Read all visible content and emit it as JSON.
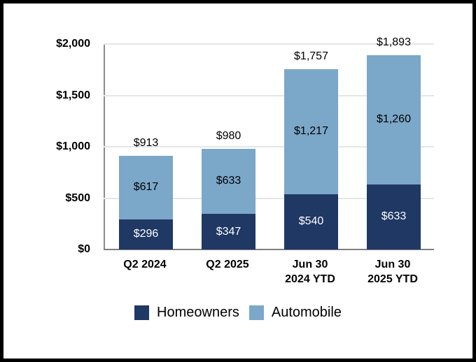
{
  "chart_data": {
    "type": "bar",
    "stacked": true,
    "title": "",
    "xlabel": "",
    "ylabel": "",
    "ylim": [
      0,
      2000
    ],
    "grid": true,
    "legend_position": "bottom",
    "categories": [
      "Q2 2024",
      "Q2 2025",
      "Jun 30 2024 YTD",
      "Jun 30 2025 YTD"
    ],
    "categories_lines": [
      [
        "Q2 2024"
      ],
      [
        "Q2 2025"
      ],
      [
        "Jun 30",
        "2024 YTD"
      ],
      [
        "Jun 30",
        "2025 YTD"
      ]
    ],
    "y_ticks": [
      "$0",
      "$500",
      "$1,000",
      "$1,500",
      "$2,000"
    ],
    "series": [
      {
        "name": "Homeowners",
        "color": "#1F3864",
        "label_color": "#ffffff",
        "values": [
          296,
          347,
          540,
          633
        ],
        "labels": [
          "$296",
          "$347",
          "$540",
          "$633"
        ]
      },
      {
        "name": "Automobile",
        "color": "#7BA7C9",
        "label_color": "#000000",
        "values": [
          617,
          633,
          1217,
          1260
        ],
        "labels": [
          "$617",
          "$633",
          "$1,217",
          "$1,260"
        ]
      }
    ],
    "totals": [
      913,
      980,
      1757,
      1893
    ],
    "total_labels": [
      "$913",
      "$980",
      "$1,757",
      "$1,893"
    ],
    "legend": [
      "Homeowners",
      "Automobile"
    ]
  }
}
